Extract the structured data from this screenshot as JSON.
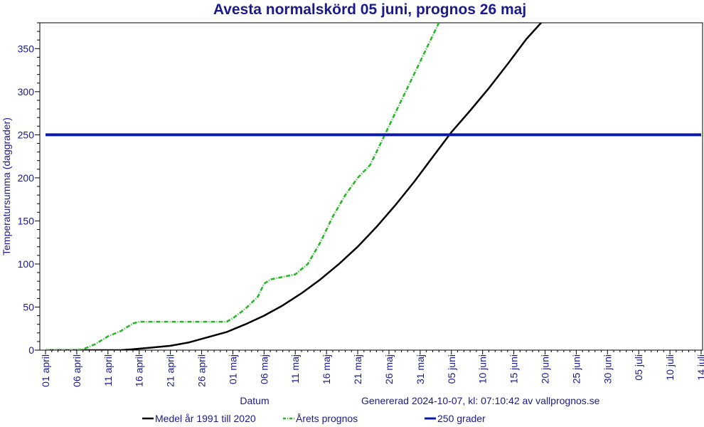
{
  "chart_data": {
    "type": "line",
    "title": "Avesta normalskörd 05 juni, prognos 26 maj",
    "xlabel": "Datum",
    "ylabel": "Temperatursumma (daggrader)",
    "footer": "Genererad 2024-10-07, kl: 07:10:42 av vallprognos.se",
    "x_start": "2024-04-01",
    "x_end": "2024-07-15",
    "x_ticks": [
      "01 april",
      "06 april",
      "11 april",
      "16 april",
      "21 april",
      "26 april",
      "01 maj",
      "06 maj",
      "11 maj",
      "16 maj",
      "21 maj",
      "26 maj",
      "31 maj",
      "05 juni",
      "10 juni",
      "15 juni",
      "20 juni",
      "25 juni",
      "30 juni",
      "05 juli",
      "10 juli",
      "14 juli"
    ],
    "ylim": [
      0,
      380
    ],
    "y_ticks": [
      0,
      50,
      100,
      150,
      200,
      250,
      300,
      350
    ],
    "grid": false,
    "legend_position": "bottom",
    "colors": {
      "text": "#1a1a8c",
      "medel": "#000000",
      "prognos": "#22b822",
      "threshold": "#0a1aa8",
      "axis": "#000000"
    },
    "series": [
      {
        "name": "Medel år 1991 till 2020",
        "color": "#000000",
        "points": [
          [
            "2024-04-01",
            0
          ],
          [
            "2024-04-08",
            0
          ],
          [
            "2024-04-13",
            0
          ],
          [
            "2024-04-15",
            1
          ],
          [
            "2024-04-18",
            3
          ],
          [
            "2024-04-21",
            5
          ],
          [
            "2024-04-24",
            9
          ],
          [
            "2024-04-27",
            15
          ],
          [
            "2024-04-30",
            21
          ],
          [
            "2024-05-03",
            30
          ],
          [
            "2024-05-06",
            40
          ],
          [
            "2024-05-09",
            52
          ],
          [
            "2024-05-12",
            66
          ],
          [
            "2024-05-15",
            82
          ],
          [
            "2024-05-18",
            100
          ],
          [
            "2024-05-21",
            120
          ],
          [
            "2024-05-24",
            143
          ],
          [
            "2024-05-27",
            168
          ],
          [
            "2024-05-30",
            195
          ],
          [
            "2024-06-02",
            224
          ],
          [
            "2024-06-05",
            253
          ],
          [
            "2024-06-08",
            278
          ],
          [
            "2024-06-11",
            304
          ],
          [
            "2024-06-14",
            332
          ],
          [
            "2024-06-17",
            361
          ],
          [
            "2024-06-20",
            385
          ]
        ]
      },
      {
        "name": "Årets prognos",
        "color": "#22b822",
        "points": [
          [
            "2024-04-01",
            0
          ],
          [
            "2024-04-06",
            0
          ],
          [
            "2024-04-07",
            1
          ],
          [
            "2024-04-09",
            7
          ],
          [
            "2024-04-11",
            16
          ],
          [
            "2024-04-13",
            22
          ],
          [
            "2024-04-15",
            31
          ],
          [
            "2024-04-16",
            33
          ],
          [
            "2024-04-20",
            33
          ],
          [
            "2024-04-25",
            33
          ],
          [
            "2024-04-30",
            33
          ],
          [
            "2024-05-01",
            37
          ],
          [
            "2024-05-03",
            48
          ],
          [
            "2024-05-05",
            62
          ],
          [
            "2024-05-06",
            77
          ],
          [
            "2024-05-07",
            82
          ],
          [
            "2024-05-09",
            85
          ],
          [
            "2024-05-11",
            88
          ],
          [
            "2024-05-13",
            100
          ],
          [
            "2024-05-15",
            125
          ],
          [
            "2024-05-17",
            155
          ],
          [
            "2024-05-19",
            180
          ],
          [
            "2024-05-21",
            200
          ],
          [
            "2024-05-23",
            215
          ],
          [
            "2024-05-25",
            245
          ],
          [
            "2024-05-27",
            275
          ],
          [
            "2024-05-29",
            305
          ],
          [
            "2024-05-31",
            335
          ],
          [
            "2024-06-02",
            365
          ],
          [
            "2024-06-03",
            380
          ]
        ]
      },
      {
        "name": "250 grader",
        "color": "#0a1aa8",
        "points": [
          [
            "2024-04-01",
            250
          ],
          [
            "2024-07-15",
            250
          ]
        ]
      }
    ]
  }
}
